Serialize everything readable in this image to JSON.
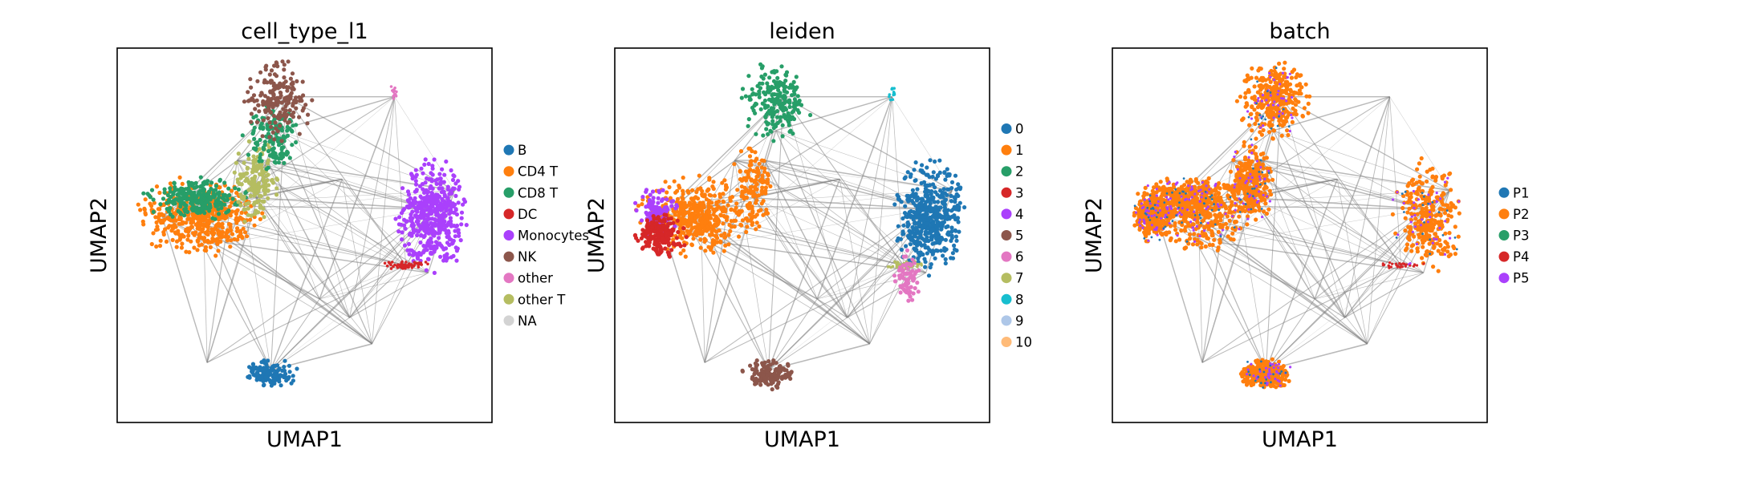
{
  "chart_data": [
    {
      "type": "scatter",
      "title": "cell_type_l1",
      "xlabel": "UMAP1",
      "ylabel": "UMAP2",
      "ticks": "none",
      "legend_placement": "right",
      "edges_color": "#808080",
      "categories": [
        {
          "name": "B",
          "color": "#1f77b4"
        },
        {
          "name": "CD4 T",
          "color": "#ff7f0e"
        },
        {
          "name": "CD8 T",
          "color": "#279e68"
        },
        {
          "name": "DC",
          "color": "#d62728"
        },
        {
          "name": "Monocytes",
          "color": "#aa40fc"
        },
        {
          "name": "NK",
          "color": "#8c564b"
        },
        {
          "name": "other",
          "color": "#e377c2"
        },
        {
          "name": "other T",
          "color": "#b5bd61"
        },
        {
          "name": "NA",
          "color": "#d3d3d3"
        }
      ]
    },
    {
      "type": "scatter",
      "title": "leiden",
      "xlabel": "UMAP1",
      "ylabel": "UMAP2",
      "ticks": "none",
      "legend_placement": "right",
      "edges_color": "#808080",
      "categories": [
        {
          "name": "0",
          "color": "#1f77b4"
        },
        {
          "name": "1",
          "color": "#ff7f0e"
        },
        {
          "name": "2",
          "color": "#279e68"
        },
        {
          "name": "3",
          "color": "#d62728"
        },
        {
          "name": "4",
          "color": "#aa40fc"
        },
        {
          "name": "5",
          "color": "#8c564b"
        },
        {
          "name": "6",
          "color": "#e377c2"
        },
        {
          "name": "7",
          "color": "#b5bd61"
        },
        {
          "name": "8",
          "color": "#17becf"
        },
        {
          "name": "9",
          "color": "#aec7e8"
        },
        {
          "name": "10",
          "color": "#ffbb78"
        }
      ]
    },
    {
      "type": "scatter",
      "title": "batch",
      "xlabel": "UMAP1",
      "ylabel": "UMAP2",
      "ticks": "none",
      "legend_placement": "right",
      "edges_color": "#808080",
      "categories": [
        {
          "name": "P1",
          "color": "#1f77b4"
        },
        {
          "name": "P2",
          "color": "#ff7f0e"
        },
        {
          "name": "P3",
          "color": "#279e68"
        },
        {
          "name": "P4",
          "color": "#d62728"
        },
        {
          "name": "P5",
          "color": "#aa40fc"
        }
      ]
    }
  ]
}
